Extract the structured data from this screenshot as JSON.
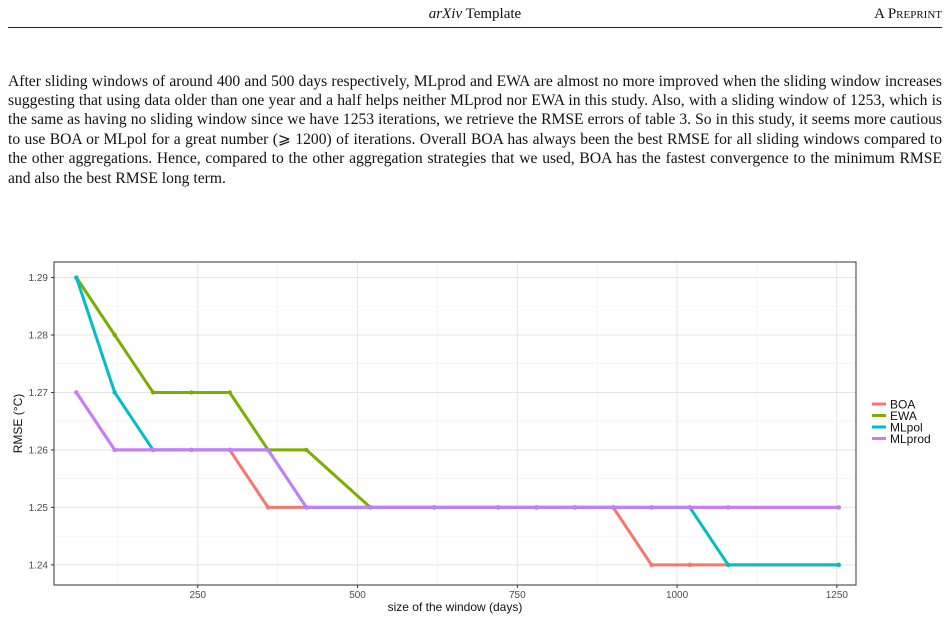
{
  "header": {
    "title_italic": "arXiv",
    "title_rest": " Template",
    "right": "A Preprint"
  },
  "paragraph": "After sliding windows of around 400 and 500 days respectively, MLprod and EWA are almost no more improved when the sliding window increases suggesting that using data older than one year and a half helps neither MLprod nor EWA in this study. Also, with a sliding window of 1253, which is the same as having no sliding window since we have 1253 iterations, we retrieve the RMSE errors of table 3. So in this study, it seems more cautious to use BOA or MLpol for a great number (⩾ 1200) of iterations. Overall BOA has always been the best RMSE for all sliding windows compared to the other aggregations. Hence, compared to the other aggregation strategies that we used, BOA has the fastest convergence to the minimum RMSE and also the best RMSE long term.",
  "chart_data": {
    "type": "line",
    "xlabel": "size of the window (days)",
    "ylabel": "RMSE (°C)",
    "xlim": [
      25,
      1280
    ],
    "ylim": [
      1.2365,
      1.2927
    ],
    "xticks": [
      250,
      500,
      750,
      1000,
      1250
    ],
    "yticks": [
      1.24,
      1.25,
      1.26,
      1.27,
      1.28,
      1.29
    ],
    "grid": true,
    "legend_position": "right",
    "x": [
      60,
      120,
      180,
      240,
      300,
      360,
      420,
      520,
      620,
      720,
      780,
      840,
      900,
      960,
      1020,
      1080,
      1253
    ],
    "series": [
      {
        "name": "BOA",
        "color": "#F8766D",
        "values": [
          1.27,
          1.26,
          1.26,
          1.26,
          1.26,
          1.25,
          1.25,
          1.25,
          1.25,
          1.25,
          1.25,
          1.25,
          1.25,
          1.24,
          1.24,
          1.24,
          1.24
        ]
      },
      {
        "name": "EWA",
        "color": "#7CAE00",
        "values": [
          1.29,
          1.28,
          1.27,
          1.27,
          1.27,
          1.26,
          1.26,
          1.25,
          1.25,
          1.25,
          1.25,
          1.25,
          1.25,
          1.25,
          1.25,
          1.25,
          1.25
        ]
      },
      {
        "name": "MLpol",
        "color": "#00BFC4",
        "values": [
          1.29,
          1.27,
          1.26,
          1.26,
          1.26,
          1.26,
          1.25,
          1.25,
          1.25,
          1.25,
          1.25,
          1.25,
          1.25,
          1.25,
          1.25,
          1.24,
          1.24
        ]
      },
      {
        "name": "MLprod",
        "color": "#C77CFF",
        "values": [
          1.27,
          1.26,
          1.26,
          1.26,
          1.26,
          1.26,
          1.25,
          1.25,
          1.25,
          1.25,
          1.25,
          1.25,
          1.25,
          1.25,
          1.25,
          1.25,
          1.25
        ]
      }
    ]
  }
}
